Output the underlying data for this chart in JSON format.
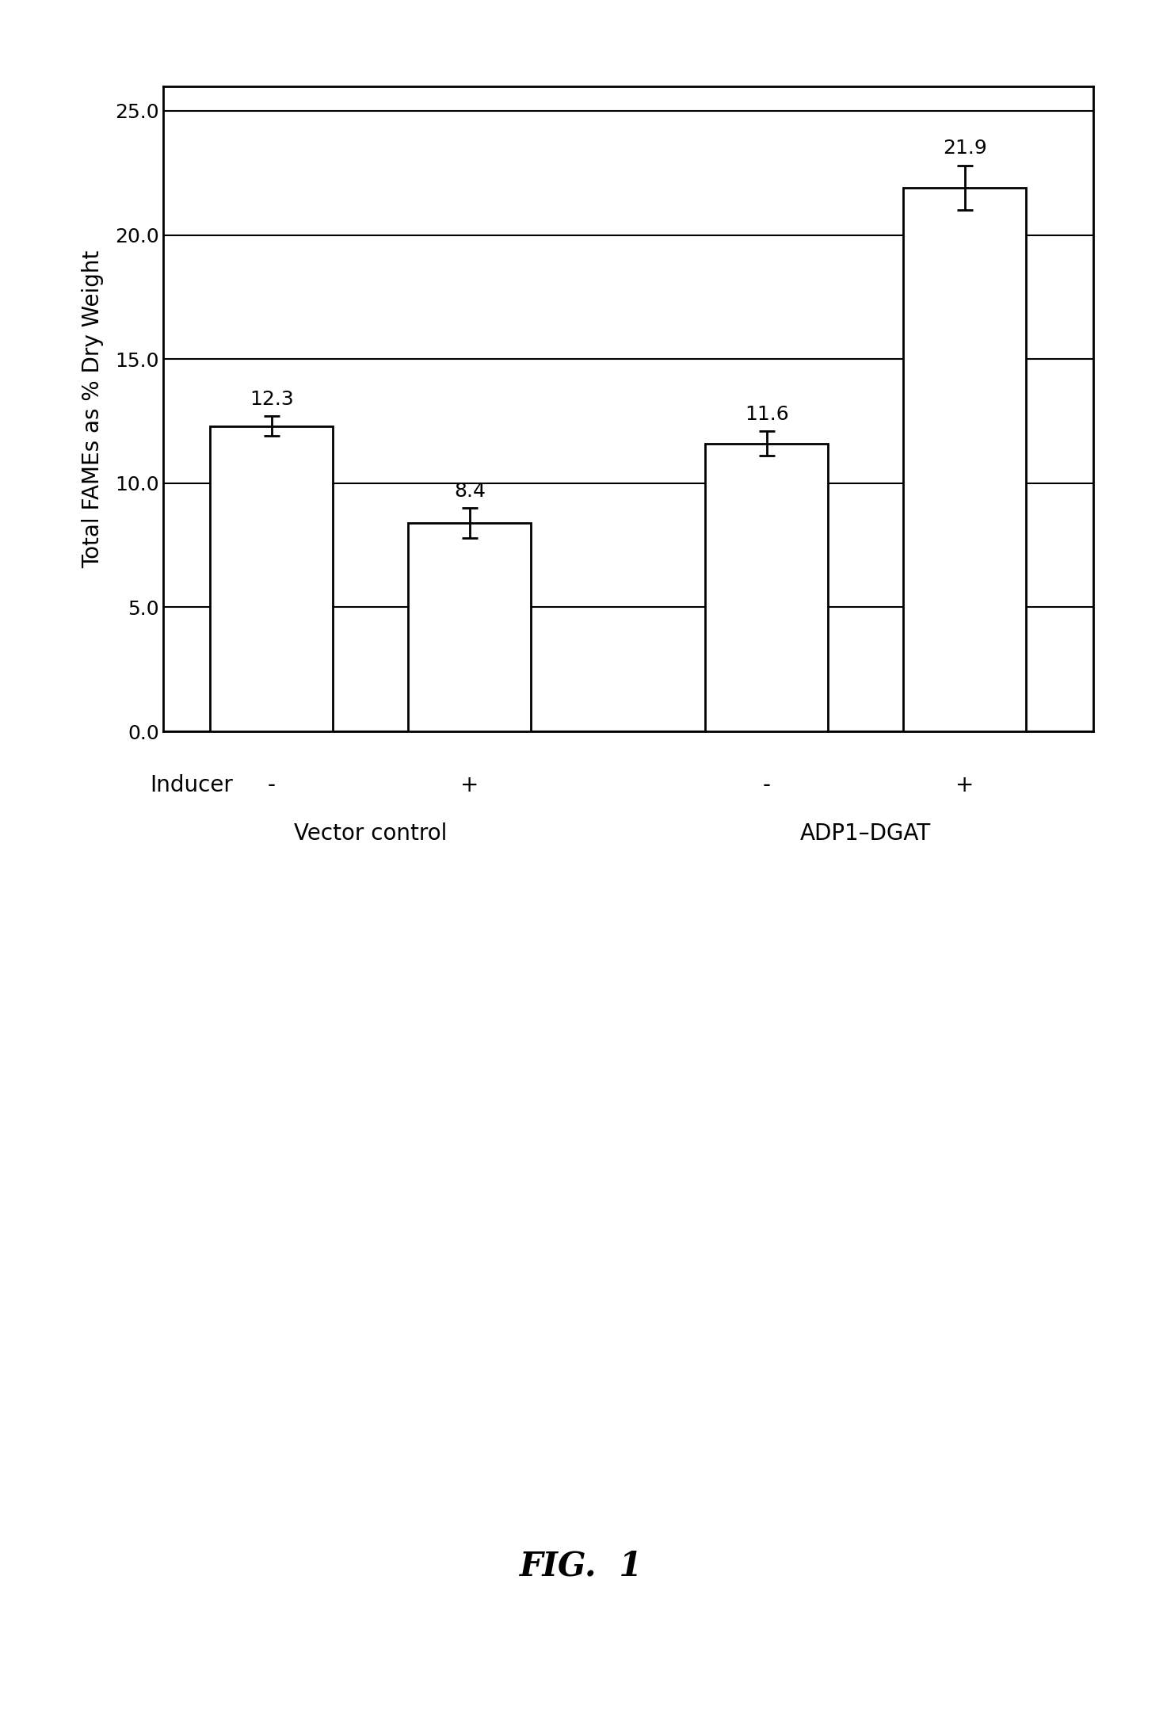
{
  "bar_values": [
    12.3,
    8.4,
    11.6,
    21.9
  ],
  "bar_errors": [
    0.4,
    0.6,
    0.5,
    0.9
  ],
  "bar_positions": [
    1,
    2,
    3.5,
    4.5
  ],
  "bar_labels": [
    "-",
    "+",
    "-",
    "+"
  ],
  "group_labels": [
    "Vector control",
    "ADP1–DGAT"
  ],
  "group_centers": [
    1.5,
    4.0
  ],
  "ylabel": "Total FAMEs as % Dry Weight",
  "ylim": [
    0,
    26
  ],
  "yticks": [
    0.0,
    5.0,
    10.0,
    15.0,
    20.0,
    25.0
  ],
  "bar_width": 0.62,
  "bar_color": "#ffffff",
  "bar_edgecolor": "#000000",
  "background_color": "#ffffff",
  "figure_caption": "FIG.  1",
  "annotation_fontsize": 18,
  "axis_label_fontsize": 20,
  "tick_fontsize": 18,
  "caption_fontsize": 30,
  "group_label_fontsize": 20,
  "inducer_label_fontsize": 20
}
